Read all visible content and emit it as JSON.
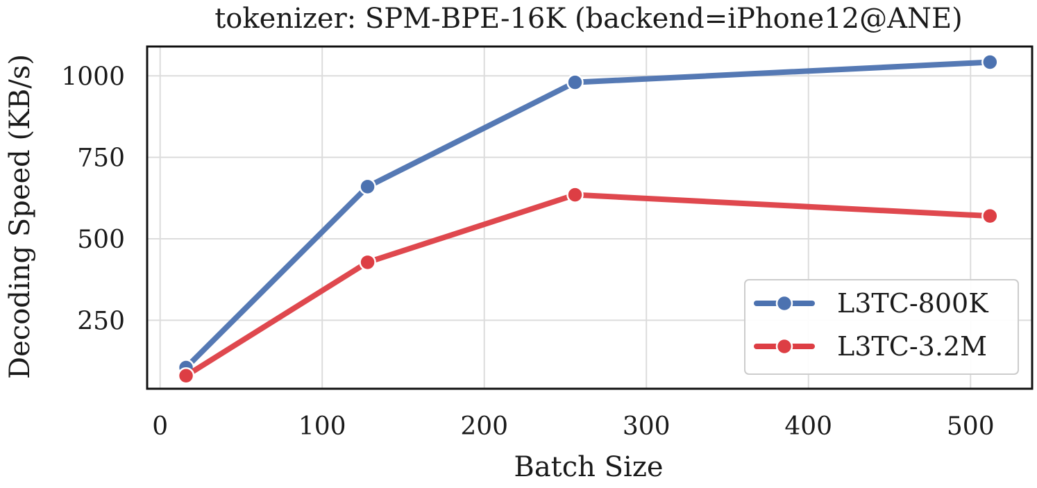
{
  "chart_data": {
    "type": "line",
    "title": "tokenizer: SPM-BPE-16K  (backend=iPhone12@ANE)",
    "xlabel": "Batch Size",
    "ylabel": "Decoding Speed (KB/s)",
    "xlim": [
      -8,
      538
    ],
    "ylim": [
      40,
      1090
    ],
    "xticks": [
      0,
      100,
      200,
      300,
      400,
      500
    ],
    "yticks": [
      250,
      500,
      750,
      1000
    ],
    "x": [
      16,
      128,
      256,
      512
    ],
    "grid": true,
    "legend_position": "lower-right",
    "series": [
      {
        "name": "L3TC-800K",
        "color": "#4c72b0",
        "values": [
          105,
          660,
          980,
          1042
        ]
      },
      {
        "name": "L3TC-3.2M",
        "color": "#dd3e44",
        "values": [
          80,
          428,
          635,
          570
        ]
      }
    ]
  }
}
